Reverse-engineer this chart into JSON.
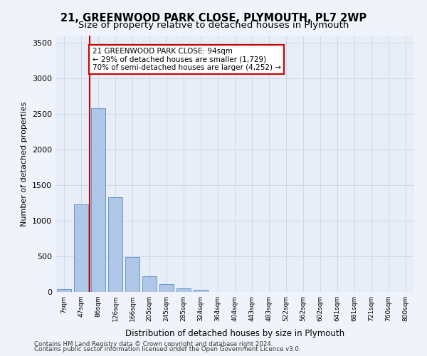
{
  "title1": "21, GREENWOOD PARK CLOSE, PLYMOUTH, PL7 2WP",
  "title2": "Size of property relative to detached houses in Plymouth",
  "xlabel": "Distribution of detached houses by size in Plymouth",
  "ylabel": "Number of detached properties",
  "bar_color": "#aec6e8",
  "bar_edge_color": "#5a8fc0",
  "categories": [
    "7sqm",
    "47sqm",
    "86sqm",
    "126sqm",
    "166sqm",
    "205sqm",
    "245sqm",
    "285sqm",
    "324sqm",
    "364sqm",
    "404sqm",
    "443sqm",
    "483sqm",
    "522sqm",
    "562sqm",
    "602sqm",
    "641sqm",
    "681sqm",
    "721sqm",
    "760sqm",
    "800sqm"
  ],
  "values": [
    40,
    1230,
    2580,
    1330,
    490,
    220,
    110,
    50,
    35,
    0,
    0,
    0,
    0,
    0,
    0,
    0,
    0,
    0,
    0,
    0,
    0
  ],
  "property_line_x": 2,
  "property_line_label": "21 GREENWOOD PARK CLOSE: 94sqm",
  "annotation_line1": "21 GREENWOOD PARK CLOSE: 94sqm",
  "annotation_line2": "← 29% of detached houses are smaller (1,729)",
  "annotation_line3": "70% of semi-detached houses are larger (4,252) →",
  "annotation_box_color": "#ffffff",
  "annotation_box_edge_color": "#cc0000",
  "vline_color": "#cc0000",
  "ylim": [
    0,
    3600
  ],
  "yticks": [
    0,
    500,
    1000,
    1500,
    2000,
    2500,
    3000,
    3500
  ],
  "grid_color": "#d0d8e8",
  "background_color": "#e8eef8",
  "plot_bg_color": "#e8eef8",
  "footer1": "Contains HM Land Registry data © Crown copyright and database right 2024.",
  "footer2": "Contains public sector information licensed under the Open Government Licence v3.0."
}
